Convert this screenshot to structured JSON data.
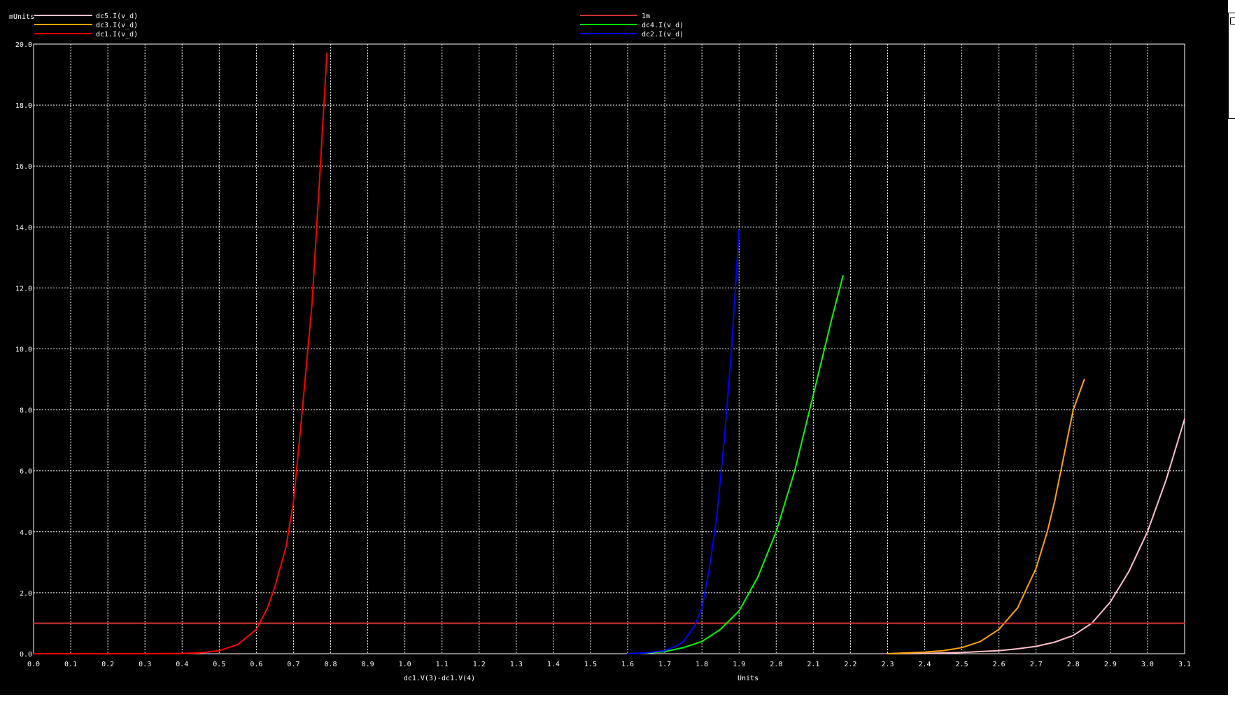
{
  "window": {
    "background": "#000000",
    "grid_color": "#ffffff",
    "text_color": "#ffffff"
  },
  "chart_data": {
    "type": "line",
    "title": "",
    "xlabel": "dc1.V(3)-dc1.V(4)",
    "xunits": "Units",
    "ylabel": "mUnits",
    "xlim": [
      0.0,
      3.1
    ],
    "ylim": [
      0.0,
      20.0
    ],
    "xticks": [
      "0.0",
      "0.1",
      "0.2",
      "0.3",
      "0.4",
      "0.5",
      "0.6",
      "0.7",
      "0.8",
      "0.9",
      "1.0",
      "1.1",
      "1.2",
      "1.3",
      "1.4",
      "1.5",
      "1.6",
      "1.7",
      "1.8",
      "1.9",
      "2.0",
      "2.1",
      "2.2",
      "2.3",
      "2.4",
      "2.5",
      "2.6",
      "2.7",
      "2.8",
      "2.9",
      "3.0",
      "3.1"
    ],
    "yticks": [
      "0.0",
      "2.0",
      "4.0",
      "6.0",
      "8.0",
      "10.0",
      "12.0",
      "14.0",
      "16.0",
      "18.0",
      "20.0"
    ],
    "grid": true,
    "legend_placement": "top",
    "series": [
      {
        "name": "dc5.I(v_d)",
        "color": "#ffc0cb",
        "x": [
          2.3,
          2.4,
          2.5,
          2.6,
          2.65,
          2.7,
          2.75,
          2.8,
          2.85,
          2.9,
          2.95,
          3.0,
          3.05,
          3.1
        ],
        "y": [
          0.0,
          0.01,
          0.04,
          0.1,
          0.16,
          0.24,
          0.38,
          0.6,
          1.0,
          1.7,
          2.7,
          4.0,
          5.7,
          7.7
        ]
      },
      {
        "name": "dc3.I(v_d)",
        "color": "#ffa500",
        "x": [
          2.3,
          2.4,
          2.45,
          2.5,
          2.55,
          2.6,
          2.65,
          2.7,
          2.73,
          2.75,
          2.78,
          2.8,
          2.83
        ],
        "y": [
          0.0,
          0.05,
          0.1,
          0.2,
          0.4,
          0.8,
          1.5,
          2.8,
          4.0,
          5.0,
          6.8,
          8.0,
          9.0
        ]
      },
      {
        "name": "dc1.I(v_d)",
        "color": "#ff0000",
        "x": [
          0.0,
          0.3,
          0.4,
          0.45,
          0.5,
          0.55,
          0.6,
          0.63,
          0.65,
          0.68,
          0.7,
          0.72,
          0.75,
          0.77,
          0.79
        ],
        "y": [
          0.0,
          0.0,
          0.01,
          0.03,
          0.1,
          0.3,
          0.8,
          1.5,
          2.2,
          3.5,
          5.0,
          7.5,
          11.5,
          15.5,
          19.7
        ]
      },
      {
        "name": "1m",
        "color": "#cc3333",
        "x": [
          0.0,
          3.1
        ],
        "y": [
          1.0,
          1.0
        ]
      },
      {
        "name": "dc4.I(v_d)",
        "color": "#00ff00",
        "x": [
          1.6,
          1.65,
          1.7,
          1.75,
          1.8,
          1.85,
          1.9,
          1.95,
          2.0,
          2.05,
          2.1,
          2.15,
          2.18
        ],
        "y": [
          0.0,
          0.02,
          0.07,
          0.2,
          0.4,
          0.8,
          1.4,
          2.5,
          4.0,
          6.0,
          8.5,
          11.0,
          12.4
        ]
      },
      {
        "name": "dc2.I(v_d)",
        "color": "#0000ff",
        "x": [
          1.6,
          1.65,
          1.7,
          1.73,
          1.75,
          1.78,
          1.8,
          1.82,
          1.84,
          1.86,
          1.88,
          1.9
        ],
        "y": [
          0.0,
          0.03,
          0.1,
          0.25,
          0.4,
          0.9,
          1.5,
          2.8,
          4.5,
          7.0,
          10.0,
          13.9
        ]
      }
    ]
  }
}
